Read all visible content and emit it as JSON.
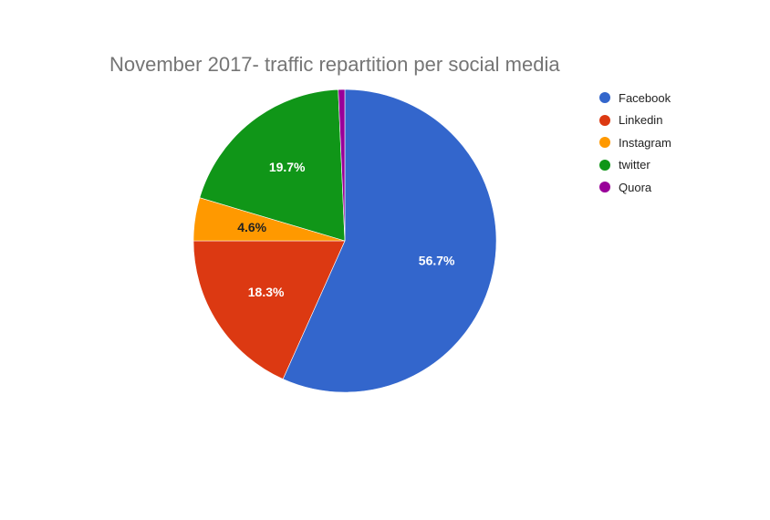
{
  "chart_data": {
    "type": "pie",
    "title": "November 2017- traffic repartition per social media",
    "categories": [
      "Facebook",
      "Linkedin",
      "Instagram",
      "twitter",
      "Quora"
    ],
    "values": [
      56.7,
      18.3,
      4.6,
      19.7,
      0.7
    ],
    "labels": [
      "56.7%",
      "18.3%",
      "4.6%",
      "19.7%",
      ""
    ],
    "colors": [
      "#3366cc",
      "#dc3912",
      "#ff9900",
      "#109618",
      "#990099"
    ],
    "label_colors": [
      "#ffffff",
      "#ffffff",
      "#222222",
      "#ffffff",
      "#ffffff"
    ],
    "legend_position": "right",
    "start_angle": 0,
    "direction": "clockwise"
  },
  "title": "November 2017- traffic repartition per social media",
  "legend": [
    {
      "label": "Facebook",
      "color": "#3366cc"
    },
    {
      "label": "Linkedin",
      "color": "#dc3912"
    },
    {
      "label": "Instagram",
      "color": "#ff9900"
    },
    {
      "label": "twitter",
      "color": "#109618"
    },
    {
      "label": "Quora",
      "color": "#990099"
    }
  ]
}
